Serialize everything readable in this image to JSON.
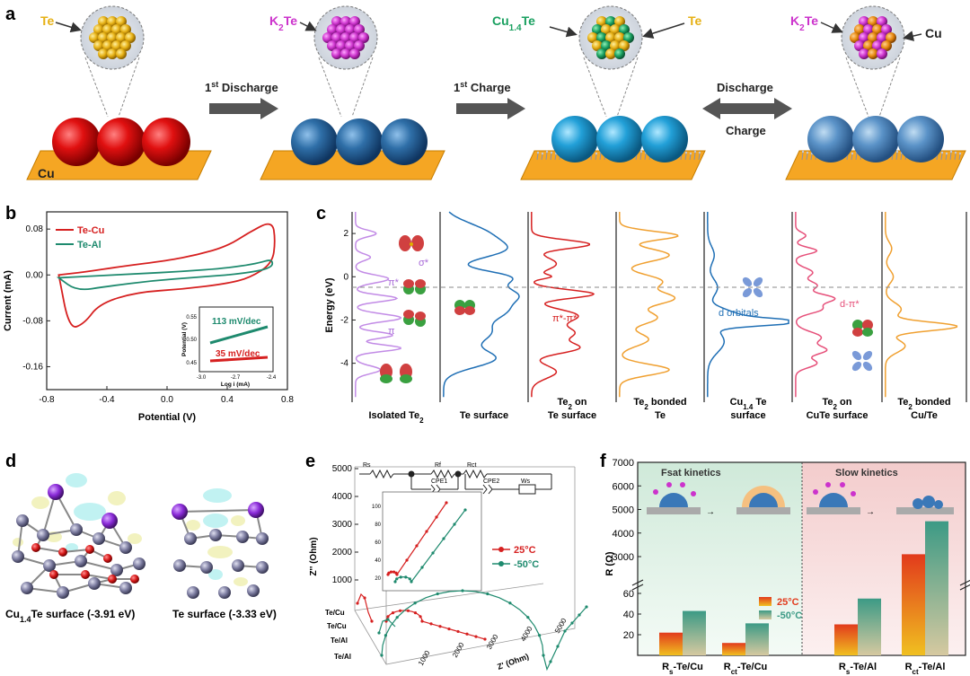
{
  "panels": {
    "a": {
      "letter": "a",
      "labels": {
        "te": "Te",
        "k2te_1": "K",
        "k2te_1_sub": "2",
        "k2te_1_tail": "Te",
        "cu14te": "Cu",
        "cu14te_sub": "1.4",
        "cu14te_tail": "Te",
        "te_2": "Te",
        "k2te_2": "K",
        "k2te_2_sub": "2",
        "k2te_2_tail": "Te",
        "cu": "Cu",
        "cu_base": "Cu"
      },
      "arrows": {
        "first_discharge_pre": "1",
        "first_discharge_sup": "st",
        "first_discharge_post": " Discharge",
        "first_charge_pre": "1",
        "first_charge_sup": "st",
        "first_charge_post": " Charge",
        "discharge": "Discharge",
        "charge": "Charge"
      },
      "colors": {
        "te": "#e6b014",
        "k2te": "#cc33cc",
        "cu": "#1aa060",
        "base": "#f5a623",
        "red_ball": "#d81a1a",
        "blue_ball": "#2f6fa8",
        "cyan_ball": "#22a0d8",
        "light_blue": "#5b93c8"
      }
    },
    "b": {
      "letter": "b",
      "chart_data": {
        "type": "line",
        "xlabel": "Potential (V)",
        "ylabel": "Current (mA)",
        "xlim": [
          -0.8,
          0.8
        ],
        "ylim": [
          -0.2,
          0.11
        ],
        "xticks": [
          "-0.8",
          "-0.4",
          "0.0",
          "0.4",
          "0.8"
        ],
        "yticks": [
          "0.08",
          "0.00",
          "-0.08",
          "-0.16"
        ],
        "legend": [
          "Te-Cu",
          "Te-Al"
        ],
        "series": [
          {
            "name": "Te-Cu",
            "color": "#d62020",
            "x": [
              -0.72,
              -0.55,
              -0.3,
              0.0,
              0.2,
              0.4,
              0.55,
              0.7,
              0.72,
              0.7,
              0.55,
              0.4,
              0.1,
              -0.2,
              -0.45,
              -0.55,
              -0.65,
              -0.72
            ],
            "y": [
              0.0,
              0.005,
              0.015,
              0.025,
              0.035,
              0.05,
              0.075,
              0.095,
              0.06,
              0.02,
              -0.005,
              -0.015,
              -0.025,
              -0.03,
              -0.05,
              -0.085,
              -0.095,
              0.0
            ]
          },
          {
            "name": "Te-Al",
            "color": "#1e8a6e",
            "x": [
              -0.72,
              -0.5,
              -0.2,
              0.1,
              0.4,
              0.6,
              0.7,
              0.7,
              0.5,
              0.2,
              -0.1,
              -0.4,
              -0.6,
              -0.72
            ],
            "y": [
              -0.005,
              -0.002,
              0.002,
              0.006,
              0.012,
              0.02,
              0.028,
              0.012,
              0.002,
              -0.004,
              -0.01,
              -0.02,
              -0.028,
              -0.005
            ]
          }
        ],
        "inset": {
          "xlabel": "Log i (mA)",
          "ylabel": "Potential (V)",
          "xticks": [
            "-3.0",
            "-2.7",
            "-2.4"
          ],
          "yticks": [
            "0.55",
            "0.50",
            "0.45"
          ],
          "label_al": "113 mV/dec",
          "label_cu": "35 mV/dec"
        }
      }
    },
    "c": {
      "letter": "c",
      "chart_data": {
        "type": "line",
        "ylabel": "Energy (eV)",
        "ylim": [
          -5.8,
          3
        ],
        "yticks": [
          "2",
          "0",
          "-2",
          "-4"
        ],
        "columns": [
          {
            "label_html": "Isolated Te<sub>2</sub>",
            "label": "Isolated Te",
            "sub": "2",
            "color": "#c28be6"
          },
          {
            "label": "Te surface",
            "color": "#1f6fb5"
          },
          {
            "label": "Te",
            "sub": "2",
            "label2": "on",
            "line2": "Te surface",
            "color": "#d62020"
          },
          {
            "label": "Te",
            "sub": "2",
            "label2": "bonded",
            "line2": "Te",
            "color": "#f0a030"
          },
          {
            "label": "Cu",
            "sub": "1.4",
            "label2": "Te",
            "line2": "surface",
            "color": "#1f6fb5"
          },
          {
            "label": "Te",
            "sub": "2",
            "label2": "on",
            "line2": "CuTe surface",
            "color": "#e6507a"
          },
          {
            "label": "Te",
            "sub": "2",
            "label2": "bonded",
            "line2": "Cu/Te",
            "color": "#f0a030"
          }
        ],
        "annotations": {
          "sigma": "σ*",
          "pi_star": "π*",
          "pi": "π",
          "pipi": "π*-π*",
          "d_orbitals": "d orbitals",
          "dpi": "d-π*"
        }
      }
    },
    "d": {
      "letter": "d",
      "caption_left_pre": "Cu",
      "caption_left_sub": "1.4",
      "caption_left_post": "Te surface (-3.91 eV)",
      "caption_right": "Te surface (-3.33 eV)"
    },
    "e": {
      "letter": "e",
      "chart_data": {
        "type": "scatter",
        "ylabel": "Z'' (Ohm)",
        "xlabel": "Z' (Ohm)",
        "yticks": [
          "5000",
          "4000",
          "3000",
          "2000",
          "1000"
        ],
        "xticks": [
          "1000",
          "2000",
          "3000",
          "4000",
          "5000"
        ],
        "zlabels": [
          "Te/Cu",
          "Te/Cu",
          "Te/Al",
          "Te/Al"
        ],
        "legend": [
          "25°C",
          "-50°C"
        ],
        "circuit": {
          "rs": "Rs",
          "rf": "Rf",
          "rct": "Rct",
          "cpe1": "CPE1",
          "cpe2": "CPE2",
          "ws": "Ws"
        },
        "inset_yticks": [
          "100",
          "80",
          "60",
          "40",
          "20"
        ]
      }
    },
    "f": {
      "letter": "f",
      "chart_data": {
        "type": "bar",
        "ylabel": "R (Ω)",
        "categories": [
          {
            "pre": "R",
            "sub": "s",
            "post": "-Te/Cu"
          },
          {
            "pre": "R",
            "sub": "ct",
            "post": "-Te/Cu"
          },
          {
            "pre": "R",
            "sub": "s",
            "post": "-Te/Al"
          },
          {
            "pre": "R",
            "sub": "ct",
            "post": "-Te/Al"
          }
        ],
        "series": [
          {
            "name": "25°C",
            "values": [
              22,
              12,
              30,
              3100
            ],
            "color": "#e23a1c"
          },
          {
            "name": "-50°C",
            "values": [
              43,
              31,
              55,
              4500
            ],
            "color": "#3c9a85"
          }
        ],
        "yticks_upper": [
          "7000",
          "6000",
          "5000",
          "4000",
          "3000"
        ],
        "yticks_lower": [
          "60",
          "40",
          "20"
        ],
        "kinetics": {
          "fast": "Fsat kinetics",
          "slow": "Slow kinetics"
        }
      }
    }
  }
}
